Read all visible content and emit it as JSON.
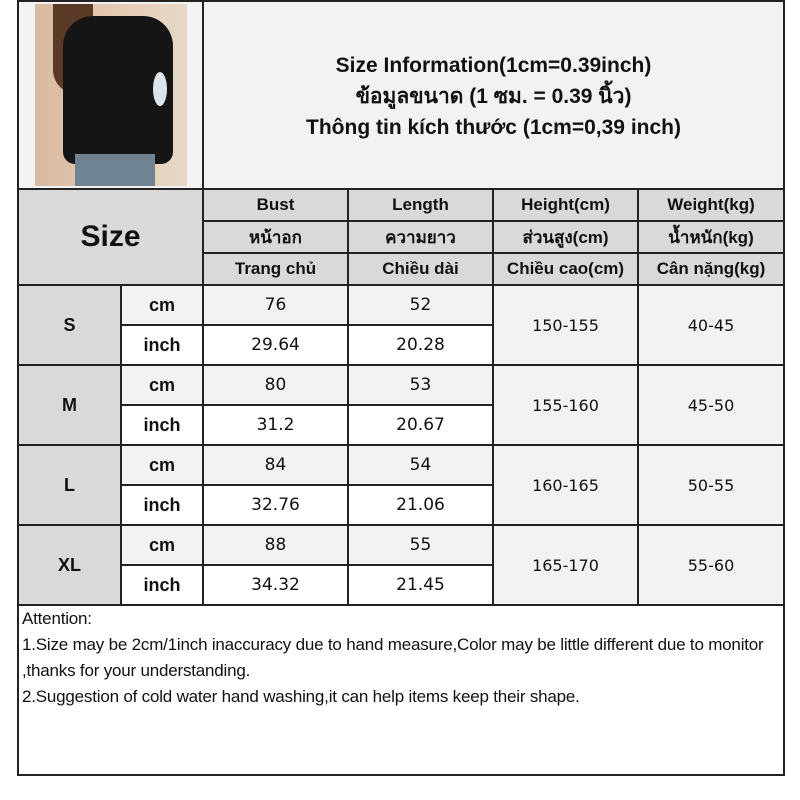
{
  "title_lines": [
    "Size Information(1cm=0.39inch)",
    "ข้อมูลขนาด (1 ซม. = 0.39 นิ้ว)",
    "Thông tin kích thước (1cm=0,39 inch)"
  ],
  "size_header": "Size",
  "columns": [
    {
      "en": "Bust",
      "th": "หน้าอก",
      "vi": "Trang chủ"
    },
    {
      "en": "Length",
      "th": "ความยาว",
      "vi": "Chiều dài"
    },
    {
      "en": "Height(cm)",
      "th": "ส่วนสูง(cm)",
      "vi": "Chiều cao(cm)"
    },
    {
      "en": "Weight(kg)",
      "th": "น้ำหนัก(kg)",
      "vi": "Cân nặng(kg)"
    }
  ],
  "sizes": [
    {
      "size": "S",
      "cm": {
        "unit": "cm",
        "bust": "76",
        "length": "52"
      },
      "inch": {
        "unit": "inch",
        "bust": "29.64",
        "length": "20.28"
      },
      "height": "150-155",
      "weight": "40-45"
    },
    {
      "size": "M",
      "cm": {
        "unit": "cm",
        "bust": "80",
        "length": "53"
      },
      "inch": {
        "unit": "inch",
        "bust": "31.2",
        "length": "20.67"
      },
      "height": "155-160",
      "weight": "45-50"
    },
    {
      "size": "L",
      "cm": {
        "unit": "cm",
        "bust": "84",
        "length": "54"
      },
      "inch": {
        "unit": "inch",
        "bust": "32.76",
        "length": "21.06"
      },
      "height": "160-165",
      "weight": "50-55"
    },
    {
      "size": "XL",
      "cm": {
        "unit": "cm",
        "bust": "88",
        "length": "55"
      },
      "inch": {
        "unit": "inch",
        "bust": "34.32",
        "length": "21.45"
      },
      "height": "165-170",
      "weight": "55-60"
    }
  ],
  "attention": [
    "Attention:",
    "1.Size may be 2cm/1inch inaccuracy due to hand measure,Color may be little different due to monitor ,thanks for your understanding.",
    "2.Suggestion of cold water hand washing,it can help items keep their shape."
  ]
}
